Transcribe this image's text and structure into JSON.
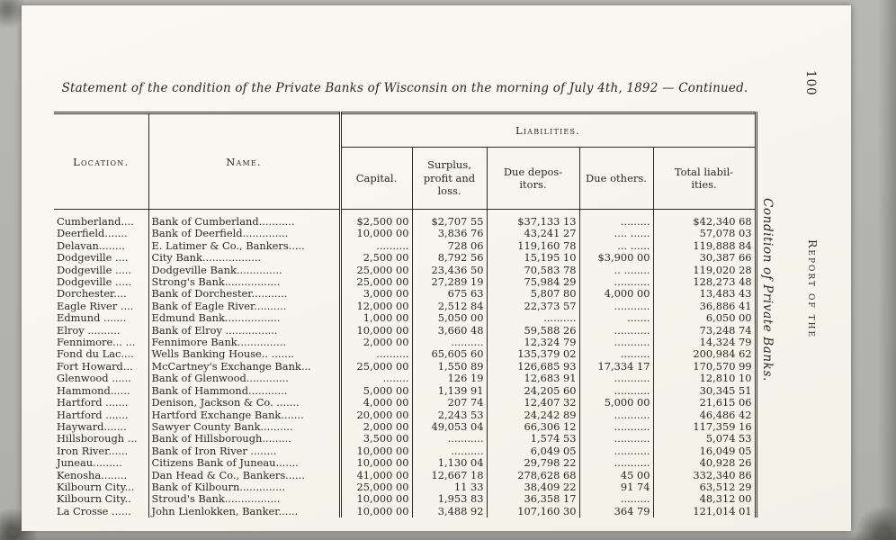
{
  "colors": {
    "paper": "#f8f6ef",
    "ink": "#2b2822",
    "background": "#b4b4b0"
  },
  "page": {
    "title": "Statement of the condition of the Private Banks of Wisconsin on the morning of July 4th, 1892 — Continued.",
    "page_number": "100",
    "running_head": "Report of the",
    "side_caption": "Condition of Private Banks."
  },
  "table": {
    "liabilities_header": "Liabilities.",
    "columns": {
      "location": "Location.",
      "name": "Name.",
      "capital": "Capital.",
      "surplus": "Surplus,\nprofit and\nloss.",
      "due_depositors": "Due depos-\nitors.",
      "due_others": "Due others.",
      "total": "Total liabil-\nities."
    },
    "rows": [
      {
        "location": "Cumberland....",
        "name": "Bank of Cumberland...........",
        "capital": "$2,500 00",
        "surplus": "$2,707 55",
        "due_depositors": "$37,133 13",
        "due_others": ".........",
        "total": "$42,340 68"
      },
      {
        "location": "Deerfield.......",
        "name": "Bank of Deerfield..............",
        "capital": "10,000 00",
        "surplus": "3,836 76",
        "due_depositors": "43,241 27",
        "due_others": ".... ......",
        "total": "57,078 03"
      },
      {
        "location": "Delavan........",
        "name": "E. Latimer & Co., Bankers.....",
        "capital": "..........",
        "surplus": "728 06",
        "due_depositors": "119,160 78",
        "due_others": "... ......",
        "total": "119,888 84"
      },
      {
        "location": "Dodgeville ....",
        "name": "City Bank..................",
        "capital": "2,500 00",
        "surplus": "8,792 56",
        "due_depositors": "15,195 10",
        "due_others": "$3,900 00",
        "total": "30,387 66"
      },
      {
        "location": "Dodgeville .....",
        "name": "Dodgeville Bank..............",
        "capital": "25,000 00",
        "surplus": "23,436 50",
        "due_depositors": "70,583 78",
        "due_others": ".. ........",
        "total": "119,020 28"
      },
      {
        "location": "Dodgeville .....",
        "name": "Strong's Bank.................",
        "capital": "25,000 00",
        "surplus": "27,289 19",
        "due_depositors": "75,984 29",
        "due_others": "...........",
        "total": "128,273 48"
      },
      {
        "location": "Dorchester....",
        "name": "Bank of Dorchester...........",
        "capital": "3,000 00",
        "surplus": "675 63",
        "due_depositors": "5,807 80",
        "due_others": "4,000 00",
        "total": "13,483 43"
      },
      {
        "location": "Eagle River ....",
        "name": "Bank of Eagle River..........",
        "capital": "12,000 00",
        "surplus": "2,512 84",
        "due_depositors": "22,373 57",
        "due_others": "...........",
        "total": "36,886 41"
      },
      {
        "location": "Edmund .......",
        "name": "Edmund Bank.................",
        "capital": "1,000 00",
        "surplus": "5,050 00",
        "due_depositors": "..........",
        "due_others": ".......",
        "total": "6,050 00"
      },
      {
        "location": "Elroy ..........",
        "name": "Bank of Elroy ................",
        "capital": "10,000 00",
        "surplus": "3,660 48",
        "due_depositors": "59,588 26",
        "due_others": "...........",
        "total": "73,248 74"
      },
      {
        "location": "Fennimore... ...",
        "name": "Fennimore Bank...............",
        "capital": "2,000 00",
        "surplus": "..........",
        "due_depositors": "12,324 79",
        "due_others": "...........",
        "total": "14,324 79"
      },
      {
        "location": "Fond du Lac....",
        "name": "Wells Banking House.. .......",
        "capital": "..........",
        "surplus": "65,605 60",
        "due_depositors": "135,379 02",
        "due_others": ".........",
        "total": "200,984 62"
      },
      {
        "location": "Fort Howard...",
        "name": "McCartney's Exchange Bank...",
        "capital": "25,000 00",
        "surplus": "1,550 89",
        "due_depositors": "126,685 93",
        "due_others": "17,334 17",
        "total": "170,570 99"
      },
      {
        "location": "Glenwood ......",
        "name": "Bank of Glenwood.............",
        "capital": "........",
        "surplus": "126 19",
        "due_depositors": "12,683 91",
        "due_others": "...........",
        "total": "12,810 10"
      },
      {
        "location": "Hammond......",
        "name": "Bank of Hammond............",
        "capital": "5,000 00",
        "surplus": "1,139 91",
        "due_depositors": "24,205 60",
        "due_others": "...........",
        "total": "30,345 51"
      },
      {
        "location": "Hartford .......",
        "name": "Denison, Jackson & Co. .......",
        "capital": "4,000 00",
        "surplus": "207 74",
        "due_depositors": "12,407 32",
        "due_others": "5,000 00",
        "total": "21,615 06"
      },
      {
        "location": "Hartford .......",
        "name": "Hartford Exchange Bank.......",
        "capital": "20,000 00",
        "surplus": "2,243 53",
        "due_depositors": "24,242 89",
        "due_others": "...........",
        "total": "46,486 42"
      },
      {
        "location": "Hayward.......",
        "name": "Sawyer County Bank..........",
        "capital": "2,000 00",
        "surplus": "49,053 04",
        "due_depositors": "66,306 12",
        "due_others": "...........",
        "total": "117,359 16"
      },
      {
        "location": "Hillsborough ...",
        "name": "Bank of Hillsborough.........",
        "capital": "3,500 00",
        "surplus": "...........",
        "due_depositors": "1,574 53",
        "due_others": "...........",
        "total": "5,074 53"
      },
      {
        "location": "Iron River......",
        "name": "Bank of Iron River ........",
        "capital": "10,000 00",
        "surplus": "..........",
        "due_depositors": "6,049 05",
        "due_others": "...........",
        "total": "16,049 05"
      },
      {
        "location": "Juneau.........",
        "name": "Citizens Bank of Juneau.......",
        "capital": "10,000 00",
        "surplus": "1,130 04",
        "due_depositors": "29,798 22",
        "due_others": "...........",
        "total": "40,928 26"
      },
      {
        "location": "Kenosha........",
        "name": "Dan Head & Co., Bankers......",
        "capital": "41,000 00",
        "surplus": "12,667 18",
        "due_depositors": "278,628 68",
        "due_others": "45 00",
        "total": "332,340 86"
      },
      {
        "location": "Kilbourn City...",
        "name": "Bank of Kilbourn..............",
        "capital": "25,000 00",
        "surplus": "11 33",
        "due_depositors": "38,409 22",
        "due_others": "91 74",
        "total": "63,512 29"
      },
      {
        "location": "Kilbourn City..",
        "name": "Stroud's Bank.................",
        "capital": "10,000 00",
        "surplus": "1,953 83",
        "due_depositors": "36,358 17",
        "due_others": ".........",
        "total": "48,312 00"
      },
      {
        "location": "La Crosse ......",
        "name": "John Lienlokken, Banker......",
        "capital": "10,000 00",
        "surplus": "3,488 92",
        "due_depositors": "107,160 30",
        "due_others": "364 79",
        "total": "121,014 01"
      }
    ]
  }
}
